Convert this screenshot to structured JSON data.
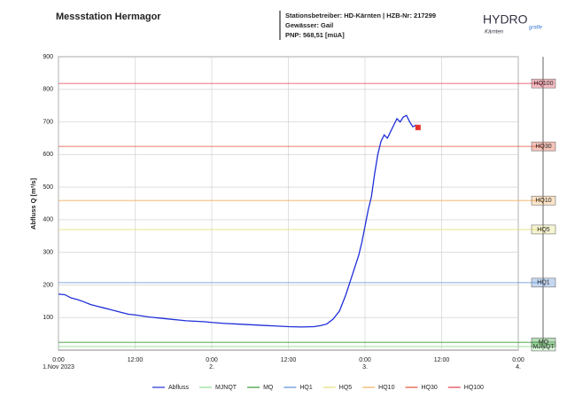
{
  "header": {
    "title": "Messstation Hermagor",
    "info": [
      "Stationsbetreiber: HD-Kärnten | HZB-Nr: 217299",
      "Gewässer: Gail",
      "PNP: 568,51 [müA]"
    ],
    "logo": "HYDRO",
    "logo_sub": "Kärnten",
    "logo_script": "grafie"
  },
  "chart_data": {
    "type": "line",
    "ylabel": "Abfluss Q [m³/s]",
    "xlim": [
      0,
      72
    ],
    "xticks": [
      {
        "value": 0,
        "label": "0:00",
        "date": "1.Nov 2023"
      },
      {
        "value": 12,
        "label": "12:00"
      },
      {
        "value": 24,
        "label": "0:00",
        "date": "2."
      },
      {
        "value": 36,
        "label": "12:00"
      },
      {
        "value": 48,
        "label": "0:00",
        "date": "3."
      },
      {
        "value": 60,
        "label": "12:00"
      },
      {
        "value": 72,
        "label": "0:00",
        "date": "4."
      }
    ],
    "ylim": [
      0,
      900
    ],
    "yticks": [
      100,
      200,
      300,
      400,
      500,
      600,
      700,
      800,
      900
    ],
    "grid": true,
    "series": [
      {
        "name": "Abfluss",
        "color": "#1f2fd8",
        "x": [
          0,
          1,
          2,
          3,
          4,
          5,
          6,
          7,
          8,
          9,
          10,
          11,
          12,
          13,
          14,
          15,
          16,
          17,
          18,
          19,
          20,
          21,
          22,
          23,
          24,
          26,
          28,
          30,
          32,
          34,
          36,
          38,
          40,
          41,
          42,
          43,
          44,
          45,
          46,
          47,
          47.5,
          48,
          48.5,
          49,
          49.5,
          50,
          50.5,
          51,
          51.5,
          52,
          52.5,
          53,
          53.5,
          54,
          54.5,
          55,
          55.5,
          56,
          56.3
        ],
        "values": [
          172,
          170,
          160,
          155,
          148,
          140,
          135,
          130,
          125,
          120,
          115,
          110,
          108,
          105,
          102,
          100,
          98,
          96,
          94,
          92,
          90,
          89,
          88,
          87,
          85,
          82,
          80,
          78,
          76,
          74,
          72,
          71,
          72,
          75,
          80,
          95,
          120,
          170,
          230,
          290,
          330,
          380,
          430,
          470,
          540,
          600,
          640,
          660,
          650,
          670,
          690,
          710,
          700,
          715,
          720,
          700,
          685,
          690,
          683
        ],
        "current_color": "#e8302a"
      }
    ],
    "thresholds": [
      {
        "name": "MJNQT",
        "value": 11,
        "color": "#8fdc8f"
      },
      {
        "name": "MQ",
        "value": 24,
        "color": "#3a9a3a"
      },
      {
        "name": "HQ1",
        "value": 207,
        "color": "#5b8fd6"
      },
      {
        "name": "HQ5",
        "value": 370,
        "color": "#e6e07a"
      },
      {
        "name": "HQ10",
        "value": 459,
        "color": "#f0b060"
      },
      {
        "name": "HQ30",
        "value": 625,
        "color": "#e0553a"
      },
      {
        "name": "HQ100",
        "value": 818,
        "color": "#e04050"
      }
    ]
  }
}
